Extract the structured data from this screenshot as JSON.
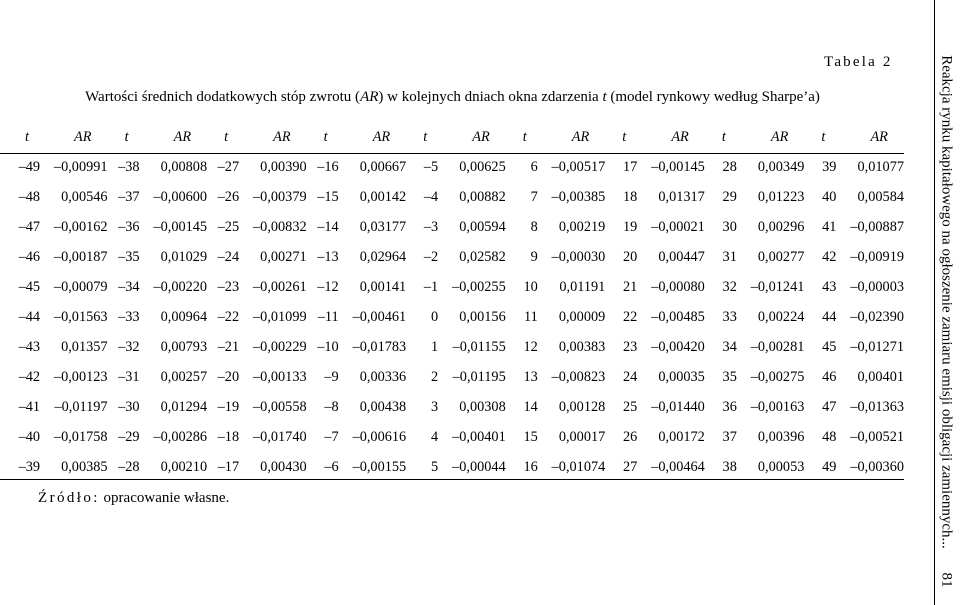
{
  "header": {
    "table_label": "Tabela 2",
    "caption_before_ar": "Wartości średnich dodatkowych stóp zwrotu (",
    "caption_ar": "AR",
    "caption_middle": ") w kolejnych dniach okna zdarzenia ",
    "caption_t": "t",
    "caption_after": " (model rynkowy według Sharpe’a)"
  },
  "table": {
    "column_pair": [
      "t",
      "AR"
    ],
    "pair_count": 9,
    "rows": [
      [
        [
          "–49",
          "–0,00991"
        ],
        [
          "–38",
          "0,00808"
        ],
        [
          "–27",
          "0,00390"
        ],
        [
          "–16",
          "0,00667"
        ],
        [
          "–5",
          "0,00625"
        ],
        [
          "6",
          "–0,00517"
        ],
        [
          "17",
          "–0,00145"
        ],
        [
          "28",
          "0,00349"
        ],
        [
          "39",
          "0,01077"
        ]
      ],
      [
        [
          "–48",
          "0,00546"
        ],
        [
          "–37",
          "–0,00600"
        ],
        [
          "–26",
          "–0,00379"
        ],
        [
          "–15",
          "0,00142"
        ],
        [
          "–4",
          "0,00882"
        ],
        [
          "7",
          "–0,00385"
        ],
        [
          "18",
          "0,01317"
        ],
        [
          "29",
          "0,01223"
        ],
        [
          "40",
          "0,00584"
        ]
      ],
      [
        [
          "–47",
          "–0,00162"
        ],
        [
          "–36",
          "–0,00145"
        ],
        [
          "–25",
          "–0,00832"
        ],
        [
          "–14",
          "0,03177"
        ],
        [
          "–3",
          "0,00594"
        ],
        [
          "8",
          "0,00219"
        ],
        [
          "19",
          "–0,00021"
        ],
        [
          "30",
          "0,00296"
        ],
        [
          "41",
          "–0,00887"
        ]
      ],
      [
        [
          "–46",
          "–0,00187"
        ],
        [
          "–35",
          "0,01029"
        ],
        [
          "–24",
          "0,00271"
        ],
        [
          "–13",
          "0,02964"
        ],
        [
          "–2",
          "0,02582"
        ],
        [
          "9",
          "–0,00030"
        ],
        [
          "20",
          "0,00447"
        ],
        [
          "31",
          "0,00277"
        ],
        [
          "42",
          "–0,00919"
        ]
      ],
      [
        [
          "–45",
          "–0,00079"
        ],
        [
          "–34",
          "–0,00220"
        ],
        [
          "–23",
          "–0,00261"
        ],
        [
          "–12",
          "0,00141"
        ],
        [
          "–1",
          "–0,00255"
        ],
        [
          "10",
          "0,01191"
        ],
        [
          "21",
          "–0,00080"
        ],
        [
          "32",
          "–0,01241"
        ],
        [
          "43",
          "–0,00003"
        ]
      ],
      [
        [
          "–44",
          "–0,01563"
        ],
        [
          "–33",
          "0,00964"
        ],
        [
          "–22",
          "–0,01099"
        ],
        [
          "–11",
          "–0,00461"
        ],
        [
          "0",
          "0,00156"
        ],
        [
          "11",
          "0,00009"
        ],
        [
          "22",
          "–0,00485"
        ],
        [
          "33",
          "0,00224"
        ],
        [
          "44",
          "–0,02390"
        ]
      ],
      [
        [
          "–43",
          "0,01357"
        ],
        [
          "–32",
          "0,00793"
        ],
        [
          "–21",
          "–0,00229"
        ],
        [
          "–10",
          "–0,01783"
        ],
        [
          "1",
          "–0,01155"
        ],
        [
          "12",
          "0,00383"
        ],
        [
          "23",
          "–0,00420"
        ],
        [
          "34",
          "–0,00281"
        ],
        [
          "45",
          "–0,01271"
        ]
      ],
      [
        [
          "–42",
          "–0,00123"
        ],
        [
          "–31",
          "0,00257"
        ],
        [
          "–20",
          "–0,00133"
        ],
        [
          "–9",
          "0,00336"
        ],
        [
          "2",
          "–0,01195"
        ],
        [
          "13",
          "–0,00823"
        ],
        [
          "24",
          "0,00035"
        ],
        [
          "35",
          "–0,00275"
        ],
        [
          "46",
          "0,00401"
        ]
      ],
      [
        [
          "–41",
          "–0,01197"
        ],
        [
          "–30",
          "0,01294"
        ],
        [
          "–19",
          "–0,00558"
        ],
        [
          "–8",
          "0,00438"
        ],
        [
          "3",
          "0,00308"
        ],
        [
          "14",
          "0,00128"
        ],
        [
          "25",
          "–0,01440"
        ],
        [
          "36",
          "–0,00163"
        ],
        [
          "47",
          "–0,01363"
        ]
      ],
      [
        [
          "–40",
          "–0,01758"
        ],
        [
          "–29",
          "–0,00286"
        ],
        [
          "–18",
          "–0,01740"
        ],
        [
          "–7",
          "–0,00616"
        ],
        [
          "4",
          "–0,00401"
        ],
        [
          "15",
          "0,00017"
        ],
        [
          "26",
          "0,00172"
        ],
        [
          "37",
          "0,00396"
        ],
        [
          "48",
          "–0,00521"
        ]
      ],
      [
        [
          "–39",
          "0,00385"
        ],
        [
          "–28",
          "0,00210"
        ],
        [
          "–17",
          "0,00430"
        ],
        [
          "–6",
          "–0,00155"
        ],
        [
          "5",
          "–0,00044"
        ],
        [
          "16",
          "–0,01074"
        ],
        [
          "27",
          "–0,00464"
        ],
        [
          "38",
          "0,00053"
        ],
        [
          "49",
          "–0,00360"
        ]
      ]
    ]
  },
  "footer": {
    "source_label": "Źródło:",
    "source_text": " opracowanie własne."
  },
  "margin": {
    "running_head": "Reakcja rynku kapitałowego na ogłoszenie zamiaru emisji obligacji zamiennych...",
    "page_number": "81"
  }
}
